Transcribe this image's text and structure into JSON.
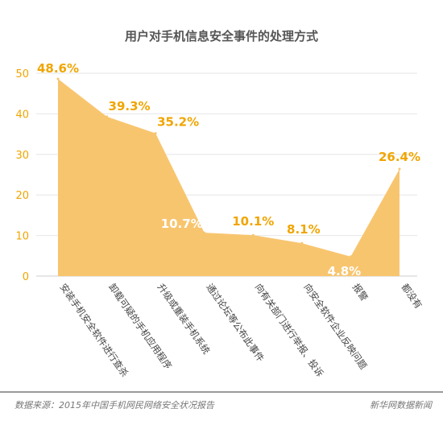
{
  "chart_data": {
    "type": "area",
    "title": "用户对手机信息安全事件的处理方式",
    "categories": [
      "安装手机安全软件进行查杀",
      "卸载可疑的手机应用程序",
      "升级或重装手机系统",
      "通过论坛等公布此事件",
      "向有关部门进行举报、投诉",
      "向安全软件企业反映问题",
      "报警",
      "都没有"
    ],
    "values": [
      48.6,
      39.3,
      35.2,
      10.7,
      10.1,
      8.1,
      4.8,
      26.4
    ],
    "data_labels": [
      "48.6%",
      "39.3%",
      "35.2%",
      "10.7%",
      "10.1%",
      "8.1%",
      "4.8%",
      "26.4%"
    ],
    "ylim": [
      0,
      50
    ],
    "yticks": [
      0,
      10,
      20,
      30,
      40,
      50
    ],
    "xlabel": "",
    "ylabel": "",
    "grid": true,
    "fill_color": "#f8c56f",
    "label_color": "#f0a500",
    "label_color_inside": "#ffffff"
  },
  "footer": {
    "source": "数据来源：2015年中国手机网民网络安全状况报告",
    "brand": "新华网数据新闻"
  }
}
